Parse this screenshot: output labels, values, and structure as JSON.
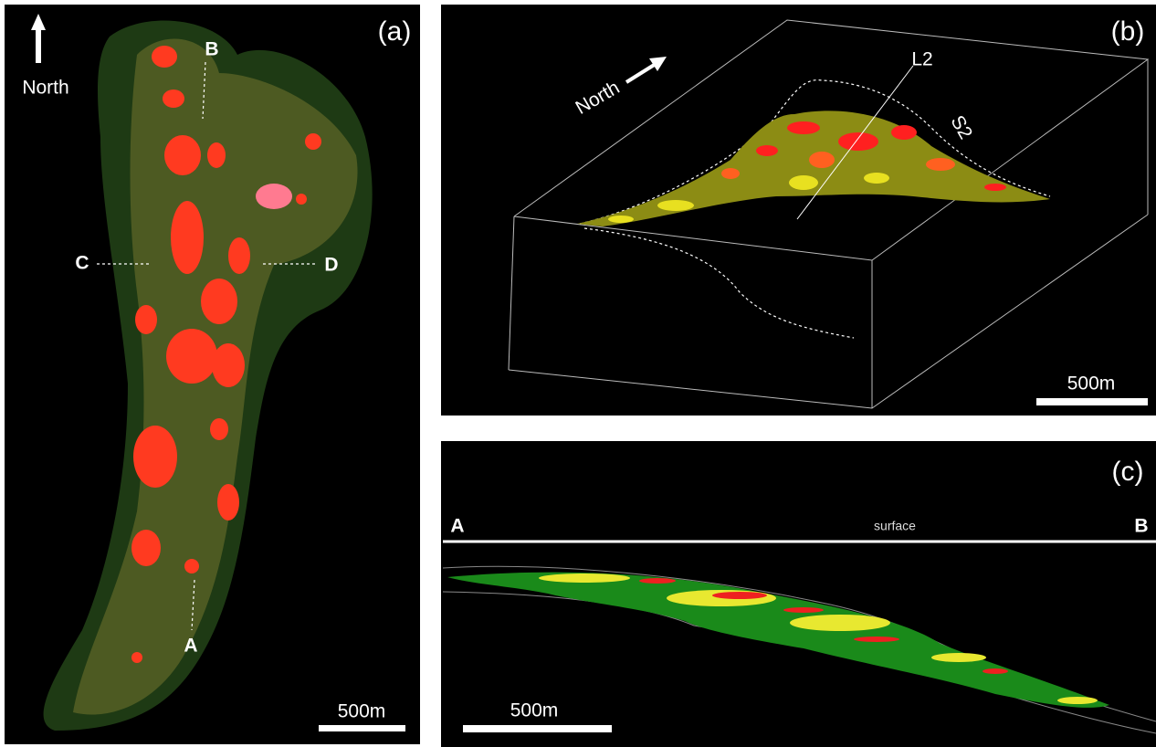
{
  "panels": [
    {
      "label": "(a)",
      "north": "North",
      "section_points": [
        "B",
        "C",
        "D",
        "A"
      ],
      "scale_bar": "500m"
    },
    {
      "label": "(b)",
      "north": "North",
      "annotations": [
        "L2",
        "S2"
      ],
      "scale_bar": "500m"
    },
    {
      "label": "(c)",
      "section_ends": [
        "A",
        "B"
      ],
      "surface": "surface",
      "scale_bar": "500m"
    }
  ]
}
